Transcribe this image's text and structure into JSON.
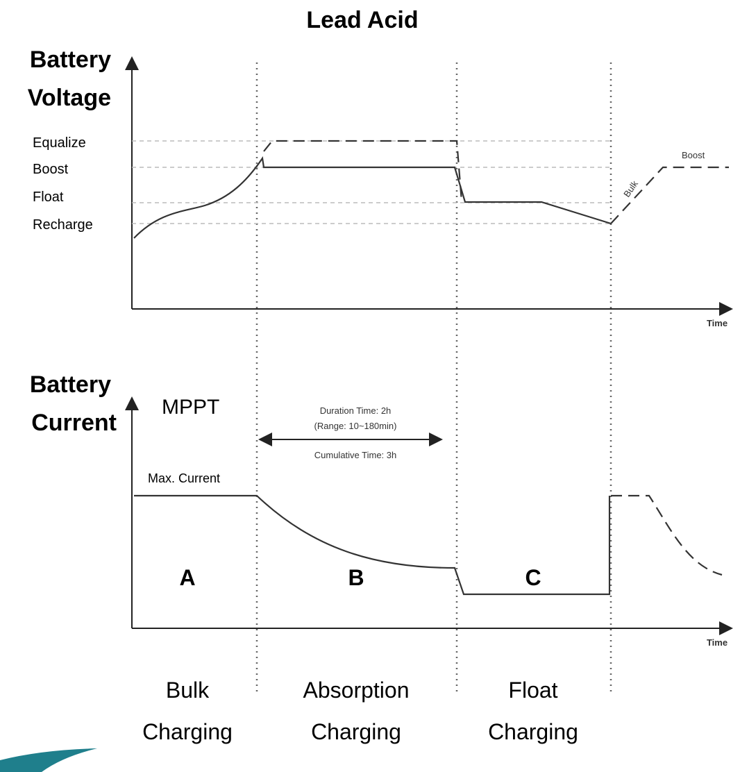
{
  "title": "Lead Acid",
  "voltage": {
    "axis_label": [
      "Battery",
      "Voltage"
    ],
    "levels": [
      "Equalize",
      "Boost",
      "Float",
      "Recharge"
    ],
    "time_label": "Time",
    "curve_labels": [
      "Bulk",
      "Boost"
    ]
  },
  "current": {
    "axis_label": [
      "Battery",
      "Current"
    ],
    "mode": "MPPT",
    "duration": [
      "Duration Time: 2h",
      "(Range: 10~180min)"
    ],
    "cumulative": "Cumulative Time: 3h",
    "max_label": "Max. Current",
    "time_label": "Time"
  },
  "phases": [
    {
      "letter": "A",
      "lines": [
        "Bulk",
        "Charging"
      ]
    },
    {
      "letter": "B",
      "lines": [
        "Absorption",
        "Charging"
      ]
    },
    {
      "letter": "C",
      "lines": [
        "Float",
        "Charging"
      ]
    }
  ]
}
